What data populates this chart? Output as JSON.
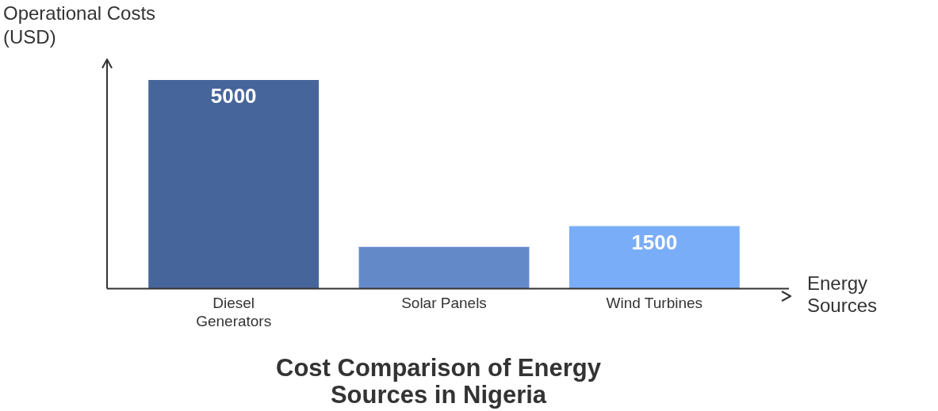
{
  "chart_data": {
    "type": "bar",
    "title": "Cost Comparison of Energy Sources in Nigeria",
    "xlabel": "Energy Sources",
    "ylabel": "Operational Costs (USD)",
    "categories": [
      "Diesel Generators",
      "Solar Panels",
      "Wind Turbines"
    ],
    "values": [
      5000,
      1000,
      1500
    ],
    "colors": [
      "#46659a",
      "#6389c9",
      "#7aadf7"
    ],
    "value_labels": [
      "5000",
      null,
      "1500"
    ],
    "grid": false,
    "legend": false
  }
}
